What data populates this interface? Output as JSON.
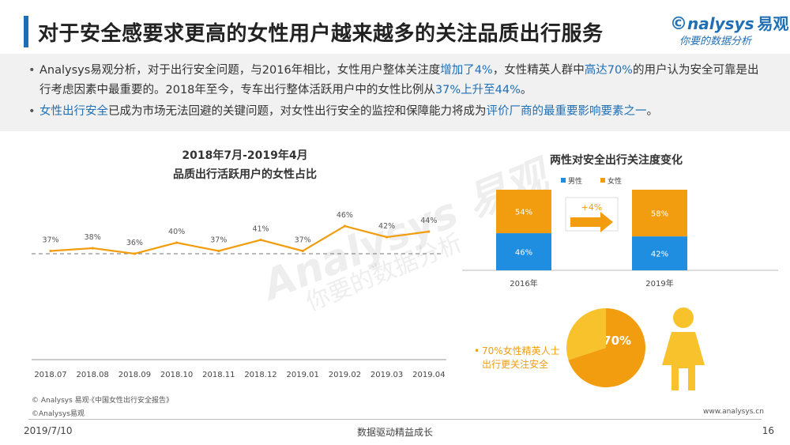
{
  "header": {
    "title": "对于安全感要求更高的女性用户越来越多的关注品质出行服务",
    "logo_brand": "nalysys",
    "logo_brand_cn": "易观",
    "logo_tagline": "你要的数据分析"
  },
  "summary": {
    "bullet1_a": "Analysys易观分析，对于出行安全问题，与2016年相比，女性用户整体关注度",
    "bullet1_h1": "增加了4%",
    "bullet1_b": "，女性精英人群中",
    "bullet1_h2": "高达70%",
    "bullet1_c": "的用户认为安全可靠是出行考虑因素中最重要的。2018年至今，专车出行整体活跃用户中的女性比例从",
    "bullet1_h3": "37%上升至44%",
    "bullet1_d": "。",
    "bullet2_h1": "女性出行安全",
    "bullet2_a": "已成为市场无法回避的关键问题，对女性出行安全的监控和保障能力将成为",
    "bullet2_h2": "评价厂商的最重要影响要素之一",
    "bullet2_b": "。"
  },
  "chart_data": [
    {
      "type": "line",
      "title": "2018年7月-2019年4月",
      "subtitle": "品质出行活跃用户的女性占比",
      "categories": [
        "2018.07",
        "2018.08",
        "2018.09",
        "2018.10",
        "2018.11",
        "2018.12",
        "2019.01",
        "2019.02",
        "2019.03",
        "2019.04"
      ],
      "values": [
        37,
        38,
        36,
        40,
        37,
        41,
        37,
        46,
        42,
        44
      ],
      "value_labels": [
        "37%",
        "38%",
        "36%",
        "40%",
        "37%",
        "41%",
        "37%",
        "46%",
        "42%",
        "44%"
      ],
      "color": "#f29d0f",
      "reference_line": "dashed",
      "grid": false
    },
    {
      "type": "bar",
      "stacked": true,
      "title": "两性对安全出行关注度变化",
      "categories": [
        "2016年",
        "2019年"
      ],
      "series": [
        {
          "name": "男性",
          "values": [
            46,
            42
          ],
          "labels": [
            "46%",
            "42%"
          ],
          "color": "#1f8de0"
        },
        {
          "name": "女性",
          "values": [
            54,
            58
          ],
          "labels": [
            "54%",
            "58%"
          ],
          "color": "#f29d0f"
        }
      ],
      "legend": "top-left",
      "annotation": "+4%"
    },
    {
      "type": "pie",
      "slices": [
        {
          "value": 70,
          "label": "70%",
          "color": "#f29d0f"
        },
        {
          "value": 30,
          "label": "",
          "color": "#f8c22c"
        }
      ],
      "note": "70%女性精英人士出行更关注安全"
    }
  ],
  "footer": {
    "source": "© Analysys 易观·《中国女性出行安全报告》",
    "copyright": "©Analysys易观",
    "url": "www.analysys.cn",
    "date": "2019/7/10",
    "slogan": "数据驱动精益成长",
    "page": "16"
  },
  "watermark": {
    "line1": "Analysys 易观",
    "line2": "你要的数据分析"
  },
  "colors": {
    "accent_blue": "#1f6fb5",
    "orange": "#f29d0f",
    "yellow": "#f8c22c",
    "male_blue": "#1f8de0"
  }
}
